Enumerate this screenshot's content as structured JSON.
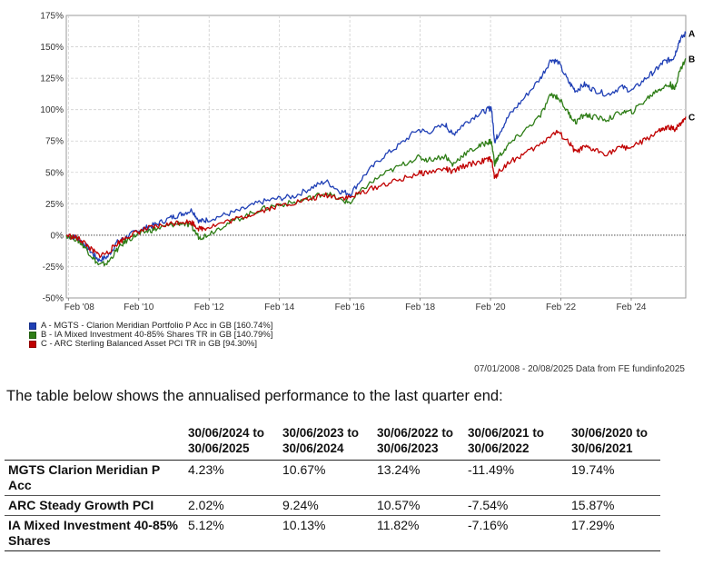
{
  "chart_data": {
    "type": "line",
    "y_tick_labels": [
      "175%",
      "150%",
      "125%",
      "100%",
      "75%",
      "50%",
      "25%",
      "0%",
      "-25%",
      "-50%"
    ],
    "y_ticks": [
      175,
      150,
      125,
      100,
      75,
      50,
      25,
      0,
      -25,
      -50
    ],
    "ylim": [
      -50,
      175
    ],
    "x_tick_labels": [
      "Feb '08",
      "Feb '10",
      "Feb '12",
      "Feb '14",
      "Feb '16",
      "Feb '18",
      "Feb '20",
      "Feb '22",
      "Feb '24"
    ],
    "x_ticks": [
      2008.08,
      2010.08,
      2012.08,
      2014.08,
      2016.08,
      2018.08,
      2020.08,
      2022.08,
      2024.08
    ],
    "xlim": [
      2008.02,
      2025.63
    ],
    "grid": true,
    "series": [
      {
        "name": "A - MGTS - Clarion Meridian Portfolio P Acc in GB [160.74%]",
        "end_label": "A",
        "color": "#1f3fb5",
        "points": [
          [
            2008.02,
            0
          ],
          [
            2008.3,
            -2
          ],
          [
            2008.5,
            -6
          ],
          [
            2008.75,
            -14
          ],
          [
            2008.95,
            -20
          ],
          [
            2009.2,
            -17
          ],
          [
            2009.45,
            -6
          ],
          [
            2009.7,
            -2
          ],
          [
            2010.0,
            3
          ],
          [
            2010.3,
            6
          ],
          [
            2010.6,
            9
          ],
          [
            2011.0,
            14
          ],
          [
            2011.3,
            17
          ],
          [
            2011.6,
            20
          ],
          [
            2011.8,
            11
          ],
          [
            2012.0,
            12
          ],
          [
            2012.5,
            16
          ],
          [
            2013.0,
            20
          ],
          [
            2013.5,
            26
          ],
          [
            2014.0,
            29
          ],
          [
            2014.5,
            31
          ],
          [
            2015.0,
            38
          ],
          [
            2015.4,
            43
          ],
          [
            2015.8,
            35
          ],
          [
            2016.1,
            33
          ],
          [
            2016.5,
            48
          ],
          [
            2017.0,
            62
          ],
          [
            2017.5,
            72
          ],
          [
            2018.0,
            84
          ],
          [
            2018.3,
            82
          ],
          [
            2018.8,
            88
          ],
          [
            2019.0,
            80
          ],
          [
            2019.3,
            88
          ],
          [
            2019.7,
            96
          ],
          [
            2020.0,
            100
          ],
          [
            2020.1,
            102
          ],
          [
            2020.2,
            75
          ],
          [
            2020.3,
            80
          ],
          [
            2020.6,
            95
          ],
          [
            2021.0,
            108
          ],
          [
            2021.5,
            125
          ],
          [
            2021.8,
            140
          ],
          [
            2022.0,
            138
          ],
          [
            2022.3,
            122
          ],
          [
            2022.5,
            115
          ],
          [
            2022.75,
            120
          ],
          [
            2023.0,
            116
          ],
          [
            2023.4,
            112
          ],
          [
            2023.8,
            118
          ],
          [
            2024.1,
            115
          ],
          [
            2024.5,
            125
          ],
          [
            2024.8,
            132
          ],
          [
            2025.0,
            138
          ],
          [
            2025.2,
            140
          ],
          [
            2025.3,
            142
          ],
          [
            2025.45,
            155
          ],
          [
            2025.63,
            160.74
          ]
        ]
      },
      {
        "name": "B - IA Mixed Investment 40-85% Shares TR in GB [140.79%]",
        "end_label": "B",
        "color": "#2e7d16",
        "points": [
          [
            2008.02,
            0
          ],
          [
            2008.3,
            -3
          ],
          [
            2008.5,
            -8
          ],
          [
            2008.75,
            -17
          ],
          [
            2008.95,
            -24
          ],
          [
            2009.2,
            -22
          ],
          [
            2009.45,
            -12
          ],
          [
            2009.7,
            -5
          ],
          [
            2010.0,
            0
          ],
          [
            2010.3,
            3
          ],
          [
            2010.6,
            5
          ],
          [
            2011.0,
            8
          ],
          [
            2011.3,
            10
          ],
          [
            2011.6,
            6
          ],
          [
            2011.8,
            -2
          ],
          [
            2012.0,
            0
          ],
          [
            2012.5,
            8
          ],
          [
            2013.0,
            14
          ],
          [
            2013.5,
            20
          ],
          [
            2014.0,
            24
          ],
          [
            2014.5,
            26
          ],
          [
            2015.0,
            30
          ],
          [
            2015.4,
            34
          ],
          [
            2015.8,
            28
          ],
          [
            2016.1,
            26
          ],
          [
            2016.5,
            38
          ],
          [
            2017.0,
            48
          ],
          [
            2017.5,
            55
          ],
          [
            2018.0,
            62
          ],
          [
            2018.3,
            60
          ],
          [
            2018.8,
            63
          ],
          [
            2019.0,
            56
          ],
          [
            2019.3,
            64
          ],
          [
            2019.7,
            70
          ],
          [
            2020.0,
            74
          ],
          [
            2020.1,
            75
          ],
          [
            2020.2,
            57
          ],
          [
            2020.3,
            62
          ],
          [
            2020.6,
            72
          ],
          [
            2021.0,
            82
          ],
          [
            2021.5,
            95
          ],
          [
            2021.8,
            112
          ],
          [
            2022.0,
            110
          ],
          [
            2022.3,
            97
          ],
          [
            2022.5,
            90
          ],
          [
            2022.75,
            96
          ],
          [
            2023.0,
            94
          ],
          [
            2023.4,
            92
          ],
          [
            2023.8,
            98
          ],
          [
            2024.1,
            98
          ],
          [
            2024.5,
            108
          ],
          [
            2024.8,
            115
          ],
          [
            2025.0,
            118
          ],
          [
            2025.2,
            120
          ],
          [
            2025.3,
            116
          ],
          [
            2025.45,
            130
          ],
          [
            2025.63,
            140.79
          ]
        ]
      },
      {
        "name": "C - ARC Sterling Balanced Asset PCI TR in GB [94.30%]",
        "end_label": "C",
        "color": "#c00000",
        "points": [
          [
            2008.02,
            0
          ],
          [
            2008.3,
            -2
          ],
          [
            2008.5,
            -5
          ],
          [
            2008.75,
            -12
          ],
          [
            2008.95,
            -16
          ],
          [
            2009.2,
            -14
          ],
          [
            2009.45,
            -7
          ],
          [
            2009.7,
            -2
          ],
          [
            2010.0,
            2
          ],
          [
            2010.3,
            5
          ],
          [
            2010.6,
            7
          ],
          [
            2011.0,
            9
          ],
          [
            2011.3,
            11
          ],
          [
            2011.6,
            10
          ],
          [
            2011.8,
            5
          ],
          [
            2012.0,
            6
          ],
          [
            2012.5,
            10
          ],
          [
            2013.0,
            14
          ],
          [
            2013.5,
            19
          ],
          [
            2014.0,
            23
          ],
          [
            2014.5,
            26
          ],
          [
            2015.0,
            29
          ],
          [
            2015.4,
            32
          ],
          [
            2015.8,
            30
          ],
          [
            2016.1,
            30
          ],
          [
            2016.5,
            35
          ],
          [
            2017.0,
            40
          ],
          [
            2017.5,
            44
          ],
          [
            2018.0,
            49
          ],
          [
            2018.3,
            50
          ],
          [
            2018.8,
            53
          ],
          [
            2019.0,
            50
          ],
          [
            2019.3,
            55
          ],
          [
            2019.7,
            58
          ],
          [
            2020.0,
            60
          ],
          [
            2020.1,
            61
          ],
          [
            2020.2,
            45
          ],
          [
            2020.3,
            50
          ],
          [
            2020.6,
            58
          ],
          [
            2021.0,
            64
          ],
          [
            2021.5,
            72
          ],
          [
            2021.8,
            80
          ],
          [
            2022.0,
            82
          ],
          [
            2022.3,
            74
          ],
          [
            2022.5,
            66
          ],
          [
            2022.75,
            70
          ],
          [
            2023.0,
            68
          ],
          [
            2023.4,
            65
          ],
          [
            2023.8,
            70
          ],
          [
            2024.1,
            70
          ],
          [
            2024.5,
            76
          ],
          [
            2024.8,
            82
          ],
          [
            2025.0,
            84
          ],
          [
            2025.2,
            86
          ],
          [
            2025.3,
            84
          ],
          [
            2025.45,
            88
          ],
          [
            2025.63,
            94.3
          ]
        ]
      }
    ]
  },
  "legend": {
    "items": [
      {
        "label": "A - MGTS - Clarion Meridian Portfolio P Acc in GB [160.74%]",
        "color": "#1f3fb5"
      },
      {
        "label": "B - IA Mixed Investment 40-85% Shares TR in GB [140.79%]",
        "color": "#2e7d16"
      },
      {
        "label": "C - ARC Sterling Balanced Asset PCI TR in GB [94.30%]",
        "color": "#c00000"
      }
    ]
  },
  "source_note": "07/01/2008 - 20/08/2025 Data from FE fundinfo2025",
  "intro_text": "The table below shows the annualised performance to the last quarter end:",
  "table": {
    "headers": [
      "",
      "30/06/2024 to 30/06/2025",
      "30/06/2023 to 30/06/2024",
      "30/06/2022 to 30/06/2023",
      "30/06/2021 to 30/06/2022",
      "30/06/2020 to 30/06/2021"
    ],
    "rows": [
      {
        "name": "MGTS Clarion Meridian P Acc",
        "values": [
          "4.23%",
          "10.67%",
          "13.24%",
          "-11.49%",
          "19.74%"
        ]
      },
      {
        "name": "ARC Steady Growth PCI",
        "values": [
          "2.02%",
          "9.24%",
          "10.57%",
          "-7.54%",
          "15.87%"
        ]
      },
      {
        "name": "IA Mixed Investment 40-85% Shares",
        "values": [
          "5.12%",
          "10.13%",
          "11.82%",
          "-7.16%",
          "17.29%"
        ]
      }
    ]
  }
}
